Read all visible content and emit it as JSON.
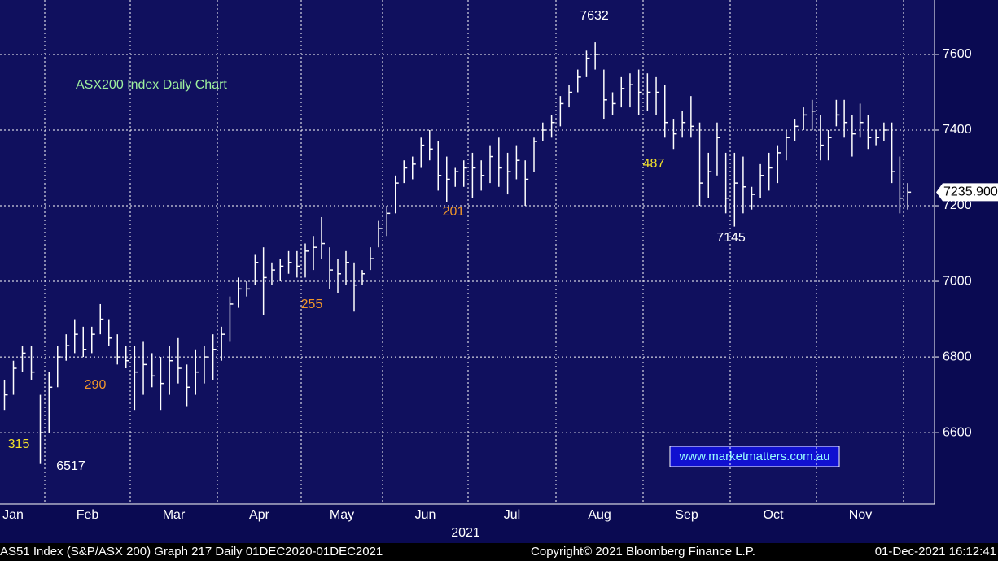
{
  "chart_data": {
    "type": "ohlc",
    "title": "ASX200 Index Daily Chart",
    "x_label": "2021",
    "footer": {
      "left": "AS51 Index (S&P/ASX 200) Graph 217  Daily 01DEC2020-01DEC2021",
      "center": "Copyright© 2021 Bloomberg Finance L.P.",
      "right": "01-Dec-2021 16:12:41"
    },
    "watermark": "www.marketmatters.com.au",
    "last_price_label": "7235.900",
    "annotations": [
      {
        "text": "7632",
        "color": "#ffffff"
      },
      {
        "text": "487",
        "color": "#f4e22a"
      },
      {
        "text": "201",
        "color": "#f0962a"
      },
      {
        "text": "255",
        "color": "#f0962a"
      },
      {
        "text": "290",
        "color": "#f0962a"
      },
      {
        "text": "315",
        "color": "#f4e22a"
      },
      {
        "text": "6517",
        "color": "#ffffff"
      },
      {
        "text": "7145",
        "color": "#ffffff"
      }
    ],
    "color": "#ffffff",
    "ylim": [
      6411,
      7744
    ],
    "yticks": [
      6600,
      6800,
      7000,
      7200,
      7400,
      7600
    ],
    "grid": true,
    "months": [
      {
        "label": "Jan",
        "high": [
          6740,
          6790,
          6830,
          6830,
          6700
        ],
        "low": [
          6660,
          6700,
          6760,
          6740,
          6517
        ],
        "close": [
          6700,
          6770,
          6810,
          6760,
          6600
        ]
      },
      {
        "label": "Feb",
        "high": [
          6760,
          6830,
          6860,
          6900,
          6880,
          6880,
          6940,
          6900,
          6860,
          6830
        ],
        "low": [
          6600,
          6720,
          6790,
          6810,
          6800,
          6810,
          6860,
          6830,
          6780,
          6770
        ],
        "close": [
          6720,
          6800,
          6830,
          6860,
          6820,
          6860,
          6900,
          6850,
          6800,
          6790
        ]
      },
      {
        "label": "Mar",
        "high": [
          6830,
          6840,
          6810,
          6800,
          6830,
          6850,
          6780,
          6820,
          6830,
          6860
        ],
        "low": [
          6660,
          6700,
          6720,
          6660,
          6700,
          6730,
          6670,
          6700,
          6730,
          6740
        ],
        "close": [
          6760,
          6780,
          6750,
          6730,
          6790,
          6770,
          6720,
          6760,
          6800,
          6820
        ]
      },
      {
        "label": "Apr",
        "high": [
          6880,
          6960,
          7010,
          7000,
          7070,
          7090,
          7050,
          7060,
          7080,
          7080
        ],
        "low": [
          6790,
          6840,
          6930,
          6960,
          6990,
          6910,
          6990,
          7000,
          7020,
          7010
        ],
        "close": [
          6860,
          6940,
          6980,
          6980,
          7050,
          7010,
          7030,
          7040,
          7050,
          7040
        ]
      },
      {
        "label": "May",
        "high": [
          7100,
          7120,
          7170,
          7090,
          7060,
          7080,
          7050,
          7030,
          7090,
          7160
        ],
        "low": [
          7010,
          7030,
          7060,
          6980,
          6970,
          6990,
          6920,
          6990,
          7030,
          7090
        ],
        "close": [
          7080,
          7090,
          7100,
          7030,
          7020,
          7050,
          6990,
          7020,
          7060,
          7140
        ]
      },
      {
        "label": "Jun",
        "high": [
          7200,
          7280,
          7320,
          7330,
          7380,
          7400,
          7370,
          7330,
          7300,
          7320
        ],
        "low": [
          7120,
          7180,
          7260,
          7270,
          7300,
          7320,
          7240,
          7210,
          7250,
          7250
        ],
        "close": [
          7180,
          7260,
          7300,
          7310,
          7360,
          7350,
          7280,
          7270,
          7290,
          7300
        ]
      },
      {
        "label": "Jul",
        "high": [
          7340,
          7320,
          7360,
          7380,
          7340,
          7360,
          7320,
          7380,
          7420,
          7440
        ],
        "low": [
          7220,
          7240,
          7260,
          7250,
          7230,
          7270,
          7200,
          7290,
          7370,
          7380
        ],
        "close": [
          7300,
          7280,
          7330,
          7300,
          7290,
          7320,
          7270,
          7370,
          7400,
          7420
        ]
      },
      {
        "label": "Aug",
        "high": [
          7490,
          7520,
          7560,
          7610,
          7632,
          7560,
          7500,
          7540,
          7550,
          7560
        ],
        "low": [
          7410,
          7460,
          7500,
          7540,
          7560,
          7430,
          7440,
          7460,
          7460,
          7440
        ],
        "close": [
          7470,
          7500,
          7540,
          7590,
          7600,
          7480,
          7470,
          7510,
          7520,
          7500
        ]
      },
      {
        "label": "Sep",
        "high": [
          7550,
          7540,
          7520,
          7430,
          7450,
          7490,
          7420,
          7340,
          7420,
          7340
        ],
        "low": [
          7450,
          7440,
          7380,
          7350,
          7380,
          7380,
          7200,
          7220,
          7280,
          7180
        ],
        "close": [
          7500,
          7500,
          7420,
          7390,
          7420,
          7410,
          7260,
          7290,
          7380,
          7220
        ]
      },
      {
        "label": "Oct",
        "high": [
          7340,
          7330,
          7250,
          7310,
          7340,
          7360,
          7400,
          7430,
          7460,
          7480
        ],
        "low": [
          7145,
          7180,
          7190,
          7220,
          7240,
          7260,
          7320,
          7370,
          7400,
          7400
        ],
        "close": [
          7260,
          7250,
          7230,
          7280,
          7300,
          7340,
          7380,
          7410,
          7440,
          7450
        ]
      },
      {
        "label": "Nov",
        "high": [
          7440,
          7400,
          7480,
          7480,
          7440,
          7470,
          7440,
          7400,
          7420,
          7420,
          7330,
          7260
        ],
        "low": [
          7320,
          7320,
          7410,
          7380,
          7330,
          7380,
          7350,
          7360,
          7370,
          7260,
          7180,
          7190
        ],
        "close": [
          7360,
          7380,
          7440,
          7420,
          7390,
          7420,
          7380,
          7380,
          7400,
          7290,
          7220,
          7235.9
        ]
      }
    ]
  }
}
